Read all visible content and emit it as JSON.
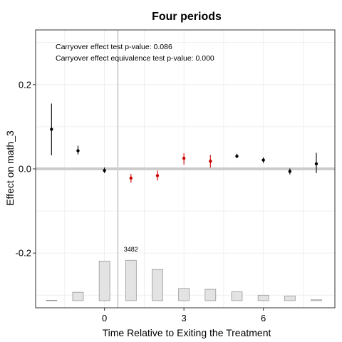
{
  "chart_data": {
    "type": "scatter",
    "title": "Four periods",
    "xlabel": "Time Relative to Exiting the Treatment",
    "ylabel": "Effect on math_3",
    "xlim": [
      -2.6,
      8.7
    ],
    "ylim": [
      -0.33,
      0.33
    ],
    "x_ticks": [
      0,
      3,
      6
    ],
    "x_tick_labels": [
      "0",
      "3",
      "6"
    ],
    "y_ticks": [
      -0.2,
      0.0,
      0.2
    ],
    "y_tick_labels": [
      "-0.2",
      "0.0",
      "0.2"
    ],
    "grid": true,
    "reference_hline": 0,
    "reference_vline": 0.5,
    "annotations": [
      "Carryover effect test p-value: 0.086",
      "Carryover effect equivalence test p-value: 0.000"
    ],
    "count_label": "3482",
    "count_label_x": 1,
    "series": [
      {
        "color": "#000000",
        "points": [
          {
            "x": -2,
            "y": 0.094,
            "lo": 0.032,
            "hi": 0.155
          },
          {
            "x": -1,
            "y": 0.043,
            "lo": 0.034,
            "hi": 0.055
          },
          {
            "x": 0,
            "y": -0.004,
            "lo": -0.01,
            "hi": 0.003
          },
          {
            "x": 5,
            "y": 0.03,
            "lo": 0.026,
            "hi": 0.036
          },
          {
            "x": 6,
            "y": 0.021,
            "lo": 0.014,
            "hi": 0.027
          },
          {
            "x": 7,
            "y": -0.006,
            "lo": -0.013,
            "hi": 0.001
          },
          {
            "x": 8,
            "y": 0.012,
            "lo": -0.01,
            "hi": 0.038
          }
        ]
      },
      {
        "color": "#cc0000",
        "points": [
          {
            "x": 1,
            "y": -0.022,
            "lo": -0.033,
            "hi": -0.012
          },
          {
            "x": 2,
            "y": -0.016,
            "lo": -0.028,
            "hi": -0.004
          },
          {
            "x": 3,
            "y": 0.025,
            "lo": 0.01,
            "hi": 0.037
          },
          {
            "x": 4,
            "y": 0.018,
            "lo": 0.003,
            "hi": 0.033
          }
        ]
      }
    ],
    "count_bars": {
      "x": [
        -2,
        -1,
        0,
        1,
        2,
        3,
        4,
        5,
        6,
        7,
        8
      ],
      "height": [
        0.001,
        0.02,
        0.094,
        0.096,
        0.074,
        0.029,
        0.027,
        0.021,
        0.013,
        0.011,
        0.002
      ]
    }
  }
}
